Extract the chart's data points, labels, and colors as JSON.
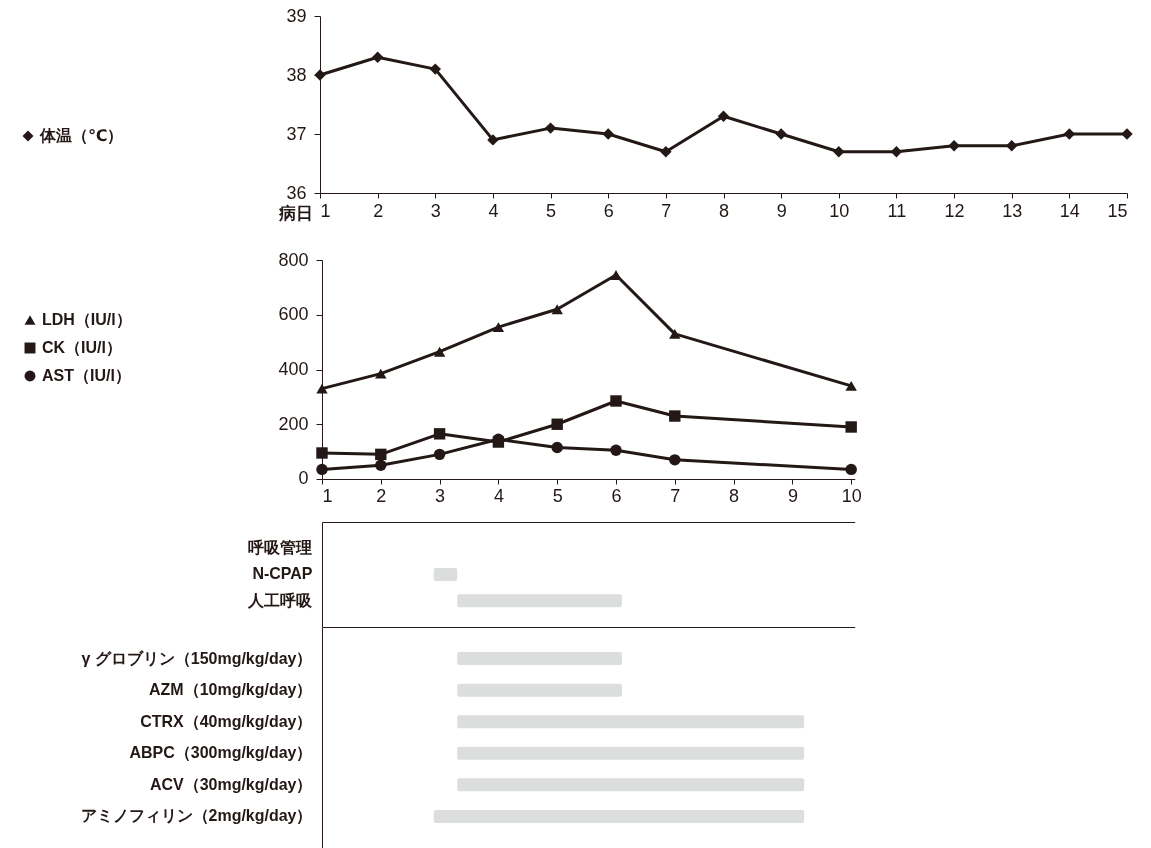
{
  "chart_data": [
    {
      "type": "line",
      "xlabel": "病日",
      "x": [
        1,
        2,
        3,
        4,
        5,
        6,
        7,
        8,
        9,
        10,
        11,
        12,
        13,
        14,
        15
      ],
      "xlim": [
        1,
        15
      ],
      "xticks": [
        1,
        2,
        3,
        4,
        5,
        6,
        7,
        8,
        9,
        10,
        11,
        12,
        13,
        14,
        15
      ],
      "ylim": [
        36,
        39
      ],
      "yticks": [
        36,
        37,
        38,
        39
      ],
      "legend": "left",
      "series": [
        {
          "name": "体温（℃）",
          "color": "#231815",
          "marker": "diamond",
          "values": [
            38.0,
            38.3,
            38.1,
            36.9,
            37.1,
            37.0,
            36.7,
            37.3,
            37.0,
            36.7,
            36.7,
            36.8,
            36.8,
            37.0,
            37.0
          ]
        }
      ]
    },
    {
      "type": "line",
      "x": [
        1,
        2,
        3,
        4,
        5,
        6,
        7,
        10
      ],
      "xlim": [
        1,
        10.06
      ],
      "xticks": [
        1,
        2,
        3,
        4,
        5,
        6,
        7,
        8,
        9,
        10
      ],
      "ylim": [
        0,
        800
      ],
      "yticks": [
        0,
        200,
        400,
        600,
        800
      ],
      "legend": "left",
      "series": [
        {
          "name": "LDH（IU/l）",
          "color": "#231815",
          "marker": "triangle",
          "values": [
            330,
            385,
            465,
            555,
            620,
            745,
            530,
            340
          ]
        },
        {
          "name": "CK（IU/l）",
          "color": "#231815",
          "marker": "square",
          "values": [
            95,
            90,
            165,
            135,
            200,
            285,
            230,
            190
          ]
        },
        {
          "name": "AST（IU/l）",
          "color": "#231815",
          "marker": "circle",
          "values": [
            35,
            50,
            90,
            145,
            115,
            105,
            70,
            35
          ]
        }
      ]
    },
    {
      "type": "bar",
      "orientation": "horizontal",
      "categories": [
        "呼吸管理",
        "N-CPAP",
        "人工呼吸"
      ],
      "base": [
        null,
        2.9,
        3.3
      ],
      "values": [
        null,
        0.4,
        2.8
      ],
      "color": "#dcdddd",
      "xlim": [
        1,
        10.06
      ],
      "tick_labels": "y"
    },
    {
      "type": "bar",
      "orientation": "horizontal",
      "categories": [
        "γ グロブリン（150mg/kg/day）",
        "AZM（10mg/kg/day）",
        "CTRX（40mg/kg/day）",
        "ABPC（300mg/kg/day）",
        "ACV（30mg/kg/day）",
        "アミノフィリン（2mg/kg/day）"
      ],
      "base": [
        3.3,
        3.3,
        3.3,
        3.3,
        3.3,
        2.9
      ],
      "values": [
        2.8,
        2.8,
        5.9,
        5.9,
        5.9,
        6.3
      ],
      "color": "#dcdddd",
      "xlim": [
        1,
        10.06
      ],
      "tick_labels": "y"
    }
  ]
}
